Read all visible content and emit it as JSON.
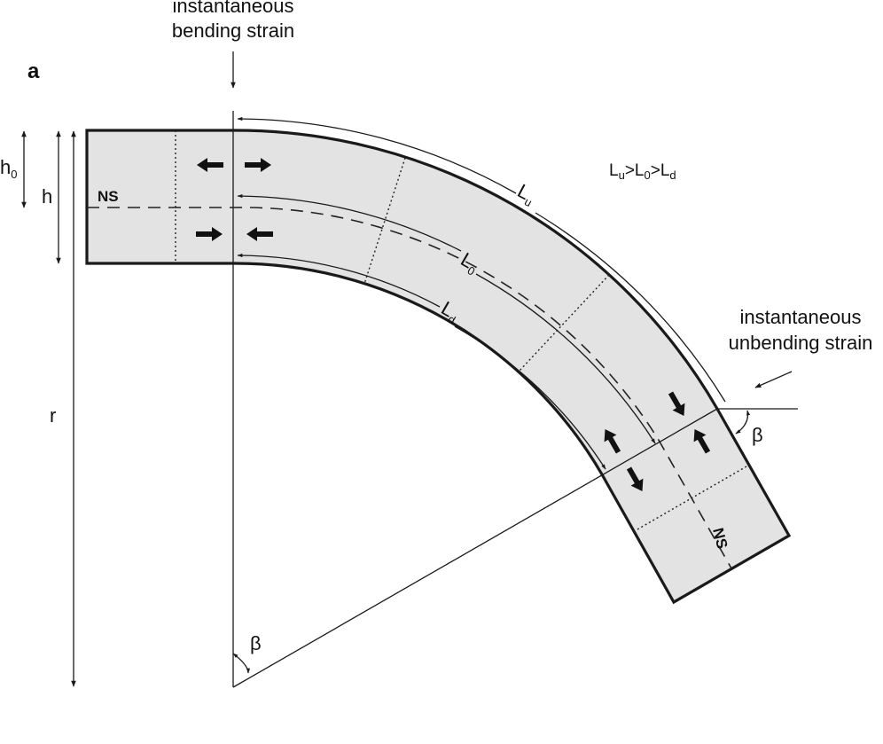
{
  "panel_label": "a",
  "top_note": {
    "line1": "instantaneous",
    "line2": "bending strain"
  },
  "side_note": {
    "line1": "instantaneous",
    "line2": "unbending strain"
  },
  "relation": {
    "l": "L",
    "u": "u",
    "gt1": ">L",
    "zero": "0",
    "gt2": ">L",
    "d": "d"
  },
  "labels": {
    "h0_main": "h",
    "h0_sub": "0",
    "h": "h",
    "r": "r",
    "ns_left": "NS",
    "ns_right": "NS",
    "lu_main": "L",
    "lu_sub": "u",
    "l0_main": "L",
    "l0_sub": "0",
    "ld_main": "L",
    "ld_sub": "d",
    "beta_bottom": "β",
    "beta_right": "β"
  },
  "colors": {
    "fill": "#e3e3e3",
    "stroke": "#1a1a1a"
  },
  "icons": [
    "arrow-left-icon",
    "arrow-right-icon",
    "arrow-down-icon",
    "arrow-up-icon"
  ]
}
